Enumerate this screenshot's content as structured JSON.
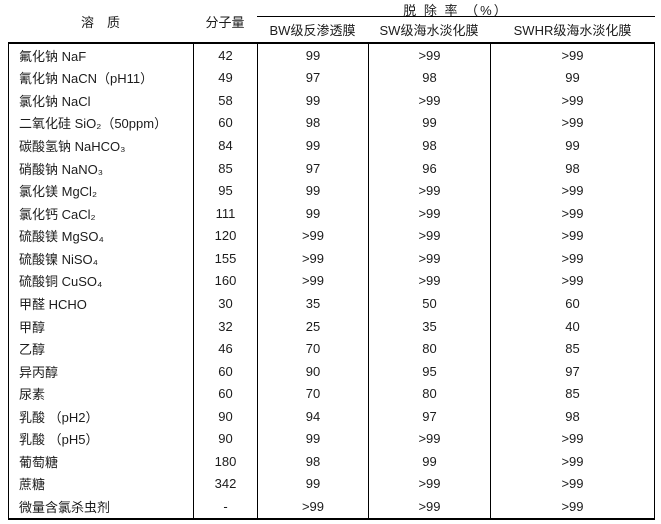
{
  "table": {
    "headers": {
      "solute": "溶　质",
      "molecular_weight": "分子量",
      "rejection_group": "脱 除 率 （%）",
      "membranes": [
        "BW级反渗透膜",
        "SW级海水淡化膜",
        "SWHR级海水淡化膜"
      ]
    },
    "rows": [
      {
        "solute": "氟化钠 NaF",
        "mw": "42",
        "bw": "99",
        "sw": ">99",
        "swhr": ">99"
      },
      {
        "solute": "氰化钠 NaCN（pH11）",
        "mw": "49",
        "bw": "97",
        "sw": "98",
        "swhr": "99"
      },
      {
        "solute": "氯化钠 NaCl",
        "mw": "58",
        "bw": "99",
        "sw": ">99",
        "swhr": ">99"
      },
      {
        "solute": "二氧化硅 SiO₂（50ppm）",
        "mw": "60",
        "bw": "98",
        "sw": "99",
        "swhr": ">99"
      },
      {
        "solute": "碳酸氢钠 NaHCO₃",
        "mw": "84",
        "bw": "99",
        "sw": "98",
        "swhr": "99"
      },
      {
        "solute": "硝酸钠 NaNO₃",
        "mw": "85",
        "bw": "97",
        "sw": "96",
        "swhr": "98"
      },
      {
        "solute": "氯化镁 MgCl₂",
        "mw": "95",
        "bw": "99",
        "sw": ">99",
        "swhr": ">99"
      },
      {
        "solute": "氯化钙 CaCl₂",
        "mw": "111",
        "bw": "99",
        "sw": ">99",
        "swhr": ">99"
      },
      {
        "solute": "硫酸镁 MgSO₄",
        "mw": "120",
        "bw": ">99",
        "sw": ">99",
        "swhr": ">99"
      },
      {
        "solute": "硫酸镍 NiSO₄",
        "mw": "155",
        "bw": ">99",
        "sw": ">99",
        "swhr": ">99"
      },
      {
        "solute": "硫酸铜 CuSO₄",
        "mw": "160",
        "bw": ">99",
        "sw": ">99",
        "swhr": ">99"
      },
      {
        "solute": "甲醛 HCHO",
        "mw": "30",
        "bw": "35",
        "sw": "50",
        "swhr": "60"
      },
      {
        "solute": "甲醇",
        "mw": "32",
        "bw": "25",
        "sw": "35",
        "swhr": "40"
      },
      {
        "solute": "乙醇",
        "mw": "46",
        "bw": "70",
        "sw": "80",
        "swhr": "85"
      },
      {
        "solute": "异丙醇",
        "mw": "60",
        "bw": "90",
        "sw": "95",
        "swhr": "97"
      },
      {
        "solute": "尿素",
        "mw": "60",
        "bw": "70",
        "sw": "80",
        "swhr": "85"
      },
      {
        "solute": "乳酸 （pH2）",
        "mw": "90",
        "bw": "94",
        "sw": "97",
        "swhr": "98"
      },
      {
        "solute": "乳酸 （pH5）",
        "mw": "90",
        "bw": "99",
        "sw": ">99",
        "swhr": ">99"
      },
      {
        "solute": "葡萄糖",
        "mw": "180",
        "bw": "98",
        "sw": "99",
        "swhr": ">99"
      },
      {
        "solute": "蔗糖",
        "mw": "342",
        "bw": "99",
        "sw": ">99",
        "swhr": ">99"
      },
      {
        "solute": "微量含氯杀虫剂",
        "mw": "-",
        "bw": ">99",
        "sw": ">99",
        "swhr": ">99"
      }
    ],
    "colors": {
      "border": "#000000",
      "text": "#1c1c1c",
      "background": "#ffffff"
    }
  }
}
